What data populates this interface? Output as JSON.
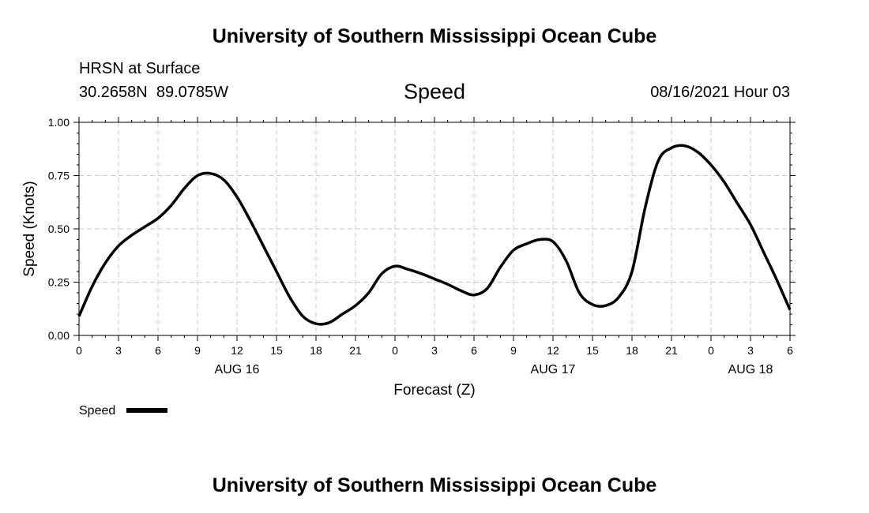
{
  "header": {
    "title": "University of Southern Mississippi Ocean Cube",
    "station": "HRSN at Surface",
    "coords": "30.2658N  89.0785W",
    "variable": "Speed",
    "datetime": "08/16/2021 Hour 03"
  },
  "footer": {
    "title": "University of Southern Mississippi Ocean Cube"
  },
  "chart_data": {
    "type": "line",
    "title": "Speed",
    "xlabel": "Forecast (Z)",
    "ylabel": "Speed (Knots)",
    "ylim": [
      0,
      1
    ],
    "xlim": [
      0,
      54
    ],
    "grid": true,
    "y_ticks": [
      0,
      0.25,
      0.5,
      0.75,
      1.0
    ],
    "y_tick_labels": [
      "0.00",
      "0.25",
      "0.50",
      "0.75",
      "1.00"
    ],
    "x_ticks": [
      0,
      3,
      6,
      9,
      12,
      15,
      18,
      21,
      24,
      27,
      30,
      33,
      36,
      39,
      42,
      45,
      48,
      51,
      54
    ],
    "x_tick_labels": [
      "0",
      "3",
      "6",
      "9",
      "12",
      "15",
      "18",
      "21",
      "0",
      "3",
      "6",
      "9",
      "12",
      "15",
      "18",
      "21",
      "0",
      "3",
      "6"
    ],
    "date_labels": [
      {
        "label": "AUG 16",
        "x": 12
      },
      {
        "label": "AUG 17",
        "x": 36
      },
      {
        "label": "AUG 18",
        "x": 51
      }
    ],
    "legend": {
      "label": "Speed",
      "placement": "bottom-left"
    },
    "series": [
      {
        "name": "Speed",
        "color": "#000000",
        "x": [
          0,
          1,
          2,
          3,
          4,
          5,
          6,
          7,
          8,
          9,
          10,
          11,
          12,
          13,
          14,
          15,
          16,
          17,
          18,
          19,
          20,
          21,
          22,
          23,
          24,
          25,
          26,
          27,
          28,
          29,
          30,
          31,
          32,
          33,
          34,
          35,
          36,
          37,
          38,
          39,
          40,
          41,
          42,
          43,
          44,
          45,
          46,
          47,
          48,
          49,
          50,
          51,
          52,
          53,
          54
        ],
        "y": [
          0.09,
          0.23,
          0.34,
          0.42,
          0.47,
          0.51,
          0.55,
          0.61,
          0.69,
          0.75,
          0.76,
          0.73,
          0.65,
          0.54,
          0.42,
          0.3,
          0.18,
          0.09,
          0.055,
          0.06,
          0.1,
          0.14,
          0.2,
          0.29,
          0.325,
          0.31,
          0.29,
          0.265,
          0.24,
          0.21,
          0.19,
          0.22,
          0.32,
          0.4,
          0.43,
          0.45,
          0.44,
          0.35,
          0.2,
          0.145,
          0.14,
          0.18,
          0.3,
          0.6,
          0.82,
          0.88,
          0.89,
          0.86,
          0.8,
          0.72,
          0.62,
          0.52,
          0.39,
          0.26,
          0.12
        ]
      }
    ]
  }
}
